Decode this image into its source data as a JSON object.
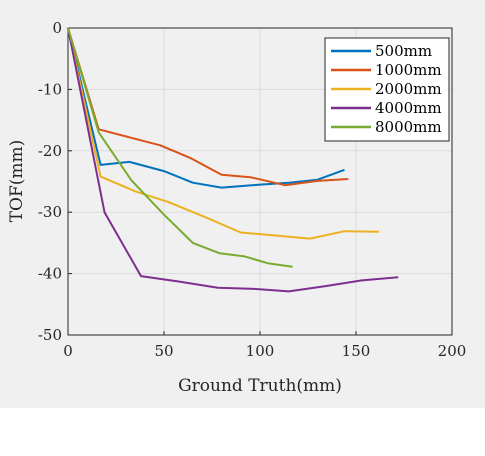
{
  "chart_data": {
    "type": "line",
    "xlabel": "Ground Truth(mm)",
    "ylabel": "TOF(mm)",
    "xlim": [
      0,
      200
    ],
    "ylim": [
      -50,
      0
    ],
    "xticks": [
      0,
      50,
      100,
      150,
      200
    ],
    "yticks": [
      0,
      -10,
      -20,
      -30,
      -40,
      -50
    ],
    "grid": true,
    "legend_position": "top-right",
    "series": [
      {
        "name": "500mm",
        "color": "#0072BD",
        "x": [
          0,
          17,
          32,
          50,
          65,
          80,
          100,
          115,
          130,
          144
        ],
        "y": [
          0,
          -22.3,
          -21.8,
          -23.3,
          -25.2,
          -26.0,
          -25.5,
          -25.2,
          -24.7,
          -23.1
        ]
      },
      {
        "name": "1000mm",
        "color": "#D95319",
        "x": [
          0,
          16,
          32,
          48,
          64,
          80,
          95,
          113,
          130,
          146
        ],
        "y": [
          0,
          -16.5,
          -17.8,
          -19.1,
          -21.2,
          -23.9,
          -24.3,
          -25.6,
          -24.9,
          -24.6
        ]
      },
      {
        "name": "2000mm",
        "color": "#EDB120",
        "x": [
          0,
          17,
          35,
          52,
          70,
          90,
          108,
          126,
          144,
          162
        ],
        "y": [
          0,
          -24.2,
          -26.6,
          -28.3,
          -30.6,
          -33.3,
          -33.8,
          -34.3,
          -33.1,
          -33.2
        ]
      },
      {
        "name": "4000mm",
        "color": "#7E2F8E",
        "x": [
          0,
          19,
          38,
          58,
          78,
          97,
          115,
          135,
          153,
          172
        ],
        "y": [
          0,
          -30.0,
          -40.4,
          -41.3,
          -42.3,
          -42.5,
          -42.9,
          -42.0,
          -41.1,
          -40.6
        ]
      },
      {
        "name": "8000mm",
        "color": "#77AC30",
        "x": [
          0,
          16,
          33,
          50,
          65,
          79,
          92,
          104,
          117
        ],
        "y": [
          0,
          -17.0,
          -24.8,
          -30.4,
          -35.0,
          -36.7,
          -37.2,
          -38.3,
          -38.9
        ]
      }
    ]
  }
}
